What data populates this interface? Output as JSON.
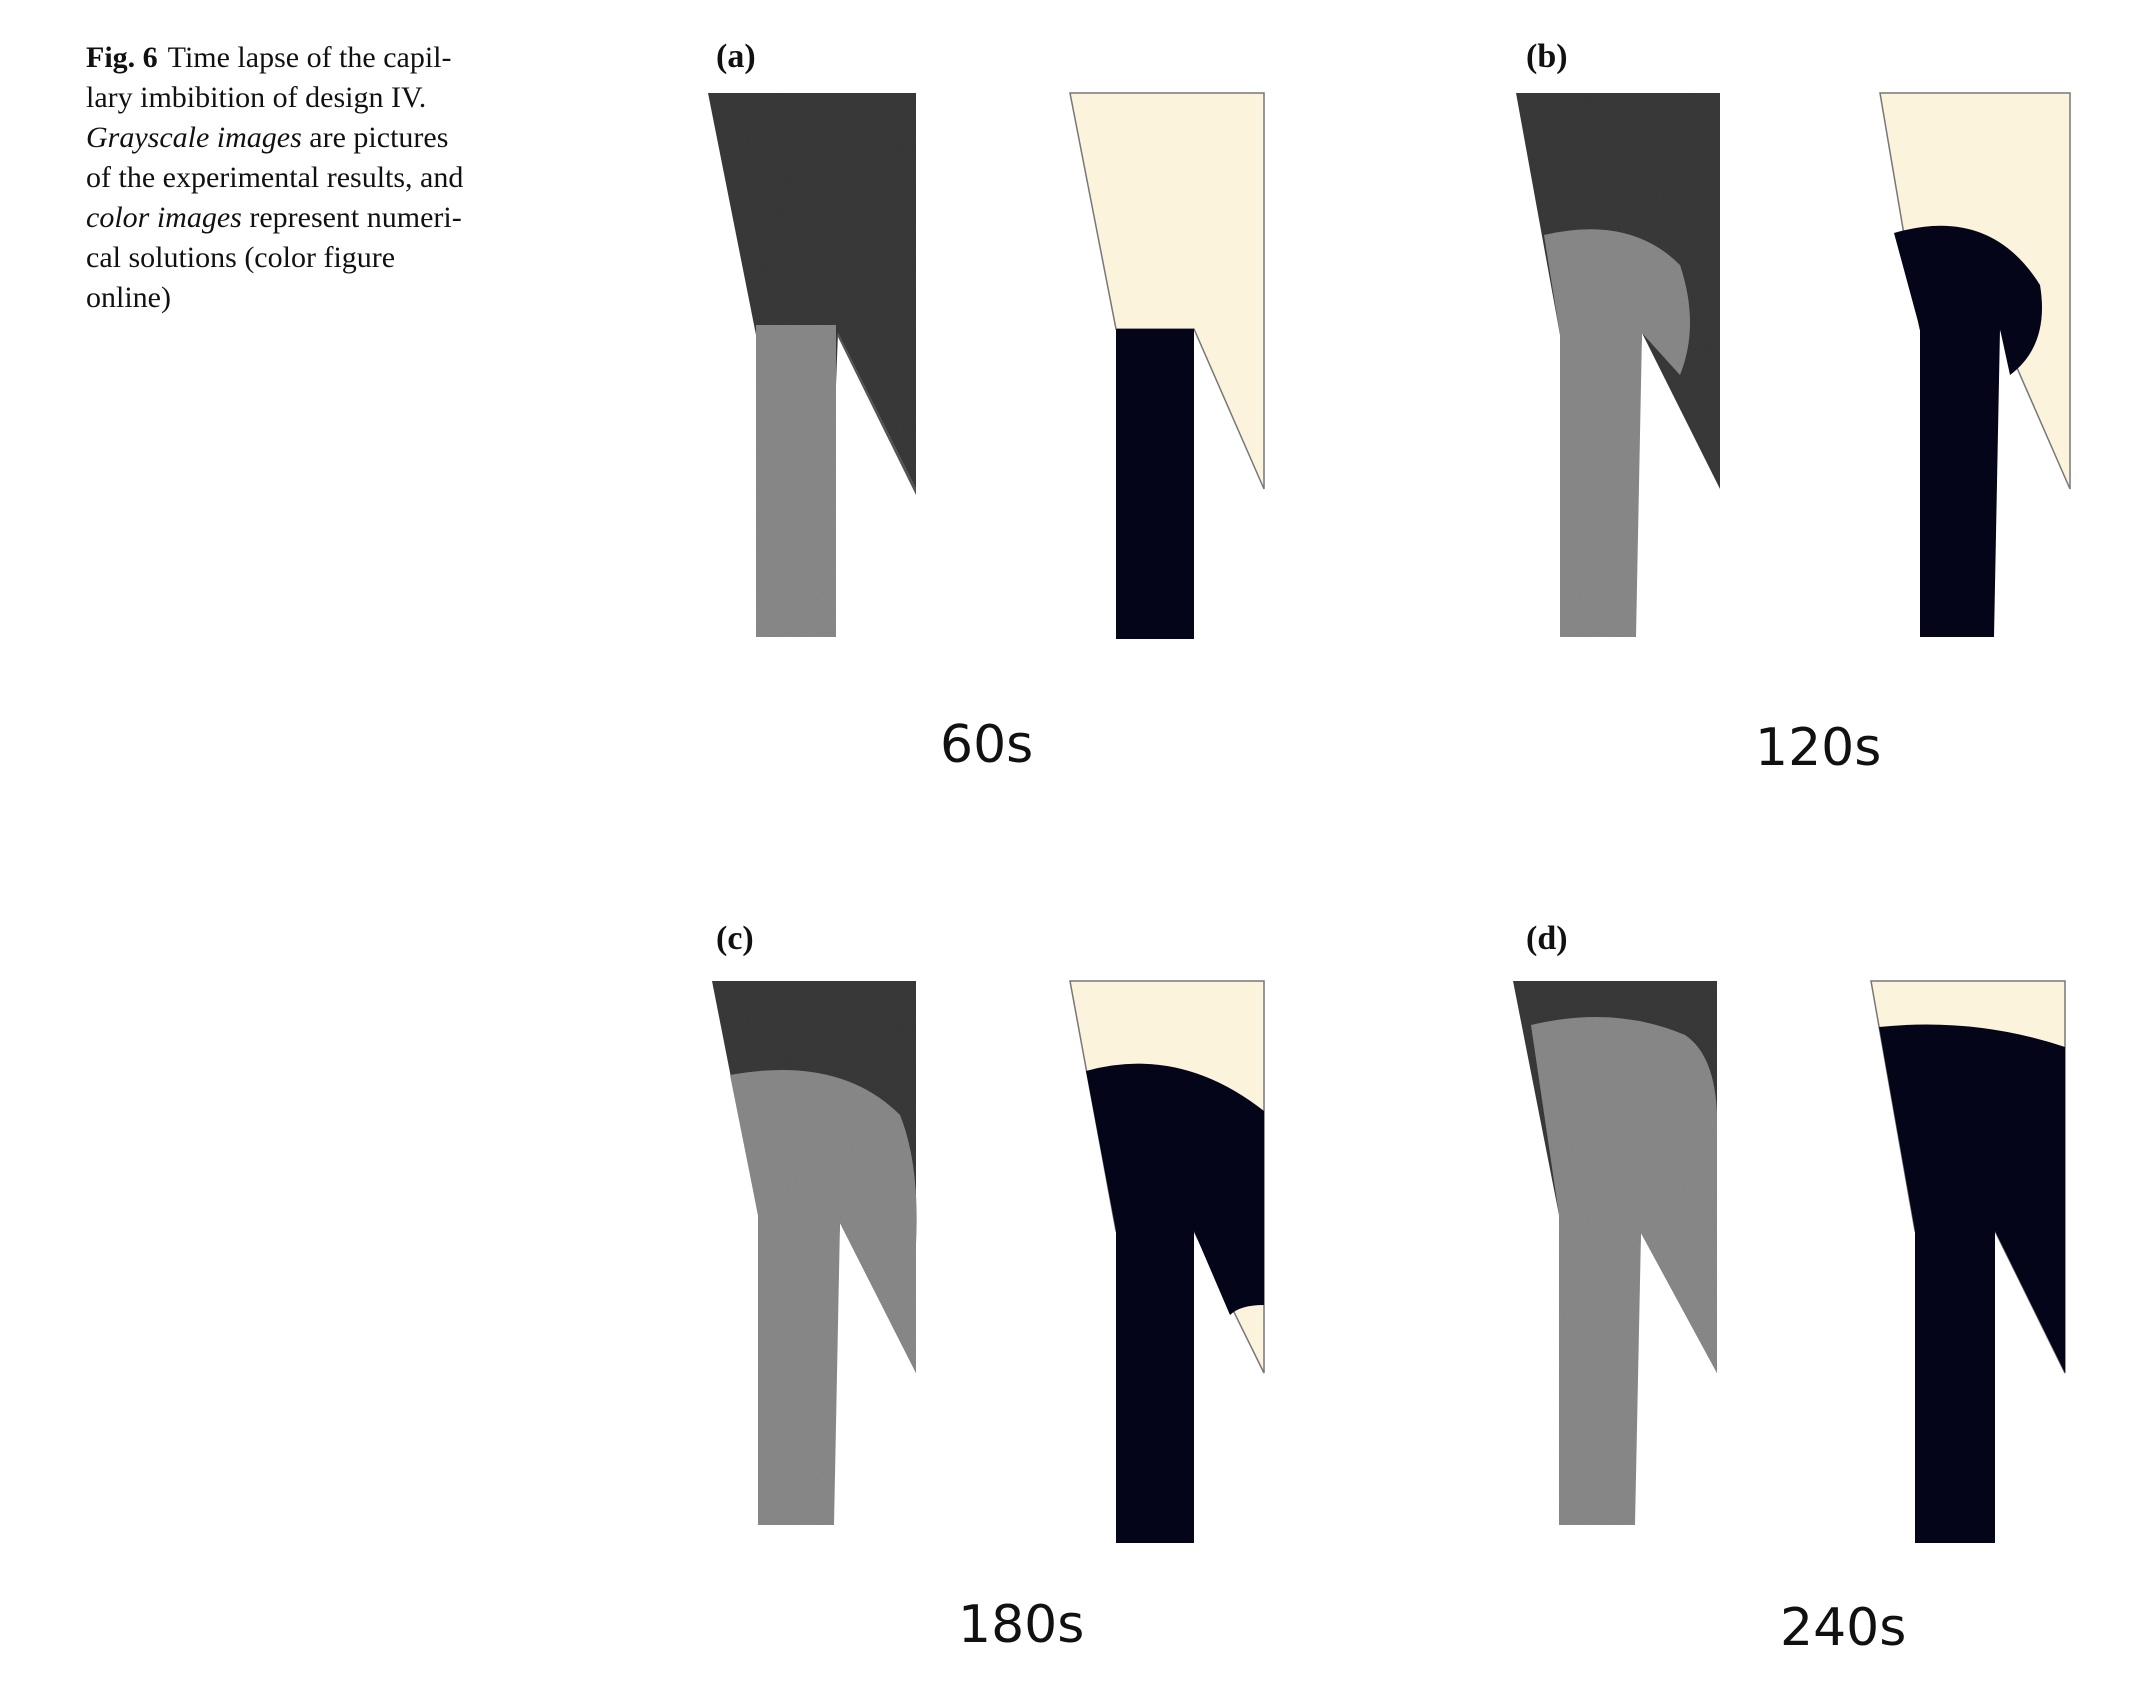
{
  "caption": {
    "fig_label": "Fig. 6",
    "line1": "Time lapse of the capil-",
    "line2": "lary imbibition of design IV.",
    "line3_em": "Grayscale images",
    "line3_rest": " are pictures",
    "line4": "of the experimental results, and",
    "line5_em": "color images",
    "line5_rest": " represent numeri-",
    "line6": "cal solutions (color figure",
    "line7": "online)"
  },
  "panels": [
    {
      "label": "(a)",
      "time": "60s"
    },
    {
      "label": "(b)",
      "time": "120s"
    },
    {
      "label": "(c)",
      "time": "180s"
    },
    {
      "label": "(d)",
      "time": "240s"
    }
  ],
  "colors": {
    "experimental_dark": "#3a3a3a",
    "experimental_wetted": "#8c8c8c",
    "simulation_fluid": "#05051a",
    "simulation_air": "#fcf3dc"
  }
}
